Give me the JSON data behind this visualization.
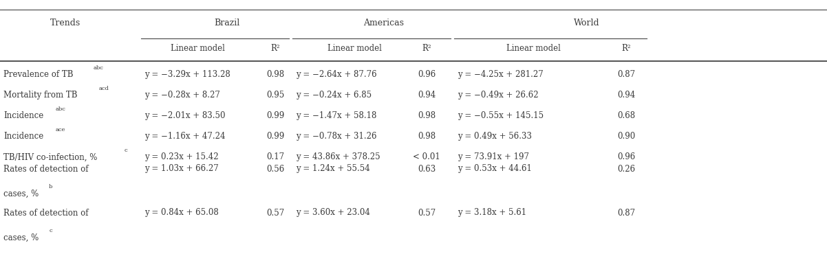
{
  "rows": [
    {
      "trend": "Prevalence of TB",
      "trend_sup": "abc",
      "brazil_lm": "y = −3.29x + 113.28",
      "brazil_r2": "0.98",
      "americas_lm": "y = −2.64x + 87.76",
      "americas_r2": "0.96",
      "world_lm": "y = −4.25x + 281.27",
      "world_r2": "0.87",
      "multiline": false
    },
    {
      "trend": "Mortality from TB",
      "trend_sup": "acd",
      "brazil_lm": "y = −0.28x + 8.27",
      "brazil_r2": "0.95",
      "americas_lm": "y = −0.24x + 6.85",
      "americas_r2": "0.94",
      "world_lm": "y = −0.49x + 26.62",
      "world_r2": "0.94",
      "multiline": false
    },
    {
      "trend": "Incidence",
      "trend_sup": "abc",
      "brazil_lm": "y = −2.01x + 83.50",
      "brazil_r2": "0.99",
      "americas_lm": "y = −1.47x + 58.18",
      "americas_r2": "0.98",
      "world_lm": "y = −0.55x + 145.15",
      "world_r2": "0.68",
      "multiline": false
    },
    {
      "trend": "Incidence",
      "trend_sup": "ace",
      "brazil_lm": "y = −1.16x + 47.24",
      "brazil_r2": "0.99",
      "americas_lm": "y = −0.78x + 31.26",
      "americas_r2": "0.98",
      "world_lm": "y = 0.49x + 56.33",
      "world_r2": "0.90",
      "multiline": false
    },
    {
      "trend": "TB/HIV co-infection, %",
      "trend_sup": "c",
      "brazil_lm": "y = 0.23x + 15.42",
      "brazil_r2": "0.17",
      "americas_lm": "y = 43.86x + 378.25",
      "americas_r2": "< 0.01",
      "world_lm": "y = 73.91x + 197",
      "world_r2": "0.96",
      "multiline": false
    },
    {
      "trend": "Rates of detection of",
      "trend_line2": "cases, %",
      "trend_sup": "b",
      "brazil_lm": "y = 1.03x + 66.27",
      "brazil_r2": "0.56",
      "americas_lm": "y = 1.24x + 55.54",
      "americas_r2": "0.63",
      "world_lm": "y = 0.53x + 44.61",
      "world_r2": "0.26",
      "multiline": true
    },
    {
      "trend": "Rates of detection of",
      "trend_line2": "cases, %",
      "trend_sup": "c",
      "brazil_lm": "y = 0.84x + 65.08",
      "brazil_r2": "0.57",
      "americas_lm": "y = 3.60x + 23.04",
      "americas_r2": "0.57",
      "world_lm": "y = 3.18x + 5.61",
      "world_r2": "0.87",
      "multiline": true
    }
  ],
  "bg_color": "#ffffff",
  "text_color": "#3a3a3a",
  "line_color": "#444444",
  "font_size": 8.5,
  "header_font_size": 9.0,
  "sup_font_size": 6.0
}
